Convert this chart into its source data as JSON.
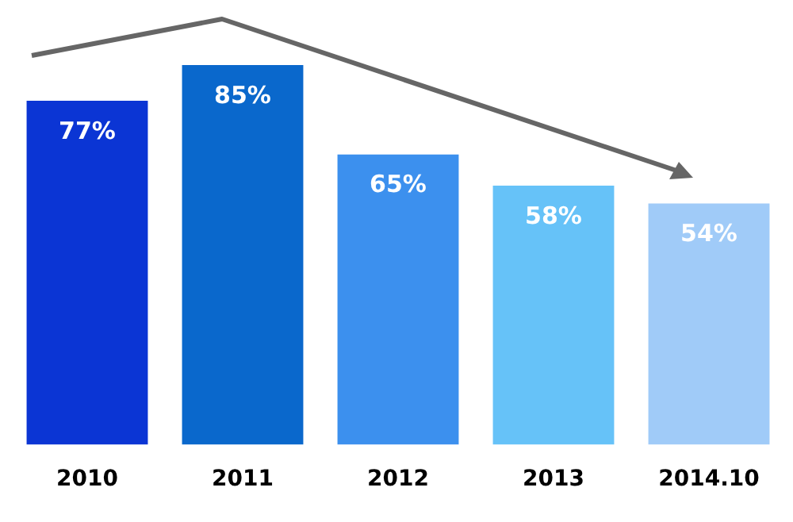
{
  "chart_data": {
    "type": "bar",
    "categories": [
      "2010",
      "2011",
      "2012",
      "2013",
      "2014.10"
    ],
    "values": [
      77,
      85,
      65,
      58,
      54
    ],
    "colors": [
      "#0b35d4",
      "#0a68cc",
      "#3c90ee",
      "#66c2f8",
      "#a0cbf8"
    ],
    "value_labels": [
      "77%",
      "85%",
      "65%",
      "58%",
      "54%"
    ],
    "grid": false,
    "legend": false
  }
}
